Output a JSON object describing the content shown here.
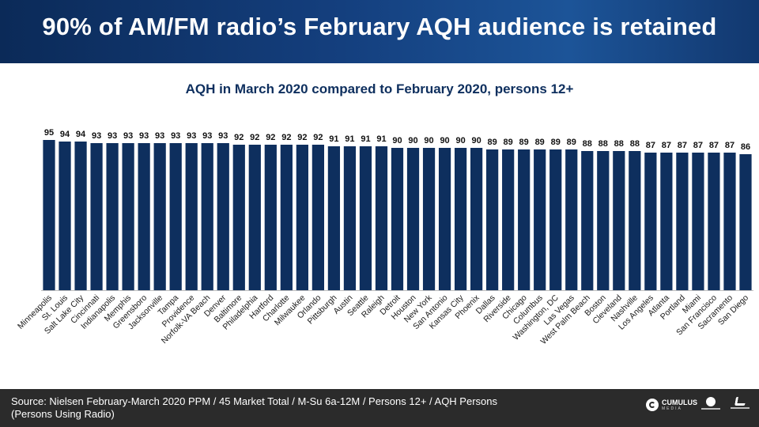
{
  "header": {
    "title": "90% of AM/FM radio’s February AQH audience is retained"
  },
  "chart_data": {
    "type": "bar",
    "title": "AQH in March 2020 compared to February 2020, persons 12+",
    "categories": [
      "Minneapolis",
      "St. Louis",
      "Salt Lake City",
      "Cincinnati",
      "Indianapolis",
      "Memphis",
      "Greensboro",
      "Jacksonville",
      "Tampa",
      "Providence",
      "Norfolk-VA Beach",
      "Denver",
      "Baltimore",
      "Philadelphia",
      "Hartford",
      "Charlotte",
      "Milwaukee",
      "Orlando",
      "Pittsburgh",
      "Austin",
      "Seattle",
      "Raleigh",
      "Detroit",
      "Houston",
      "New York",
      "San Antonio",
      "Kansas City",
      "Phoenix",
      "Dallas",
      "Riverside",
      "Chicago",
      "Columbus",
      "Washington, DC",
      "Las Vegas",
      "West Palm Beach",
      "Boston",
      "Cleveland",
      "Nashville",
      "Los Angeles",
      "Atlanta",
      "Portland",
      "Miami",
      "San Francisco",
      "Sacramento",
      "San Diego"
    ],
    "values": [
      95,
      94,
      94,
      93,
      93,
      93,
      93,
      93,
      93,
      93,
      93,
      93,
      92,
      92,
      92,
      92,
      92,
      92,
      91,
      91,
      91,
      91,
      90,
      90,
      90,
      90,
      90,
      90,
      89,
      89,
      89,
      89,
      89,
      89,
      88,
      88,
      88,
      88,
      87,
      87,
      87,
      87,
      87,
      87,
      86
    ],
    "ylim": [
      0,
      100
    ],
    "bar_color": "#0e2f5e",
    "label_color": "#111111",
    "grid": false
  },
  "footer": {
    "source_line1": "Source: Nielsen February-March 2020 PPM / 45 Market Total / M-Su 6a-12M / Persons 12+ / AQH Persons",
    "source_line2": "(Persons Using Radio)",
    "logo_name": "CUMULUS",
    "logo_sub": "MEDIA"
  }
}
